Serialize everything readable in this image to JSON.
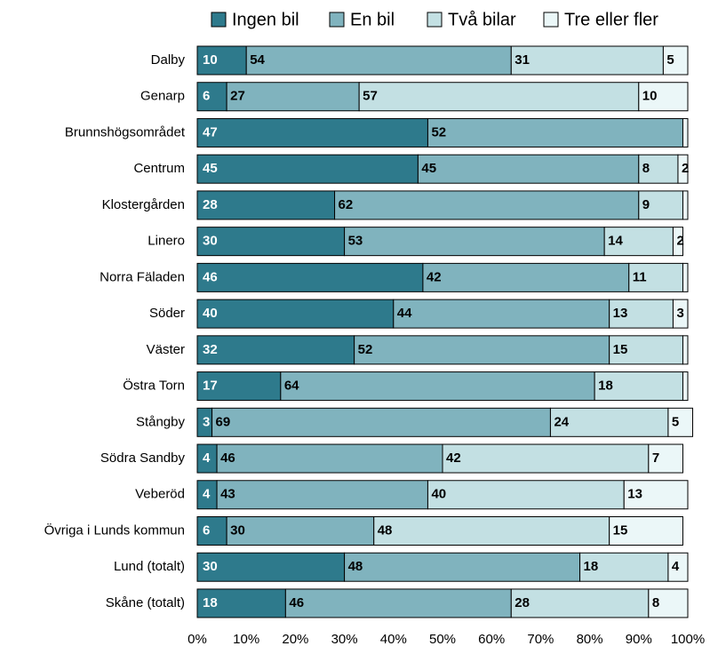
{
  "chart_data": {
    "type": "stacked-barh",
    "categories": [
      "Dalby",
      "Genarp",
      "Brunnshögsområdet",
      "Centrum",
      "Klostergården",
      "Linero",
      "Norra Fäladen",
      "Söder",
      "Väster",
      "Östra Torn",
      "Stångby",
      "Södra Sandby",
      "Veberöd",
      "Övriga i Lunds kommun",
      "Lund (totalt)",
      "Skåne (totalt)"
    ],
    "series": [
      {
        "name": "Ingen bil",
        "color": "#2e7a8c",
        "values": [
          10,
          6,
          47,
          45,
          28,
          30,
          46,
          40,
          32,
          17,
          3,
          4,
          4,
          6,
          30,
          18
        ]
      },
      {
        "name": "En bil",
        "color": "#80b3be",
        "values": [
          54,
          27,
          52,
          45,
          62,
          53,
          42,
          44,
          52,
          64,
          69,
          46,
          43,
          30,
          48,
          46
        ]
      },
      {
        "name": "Två bilar",
        "color": "#c3e0e3",
        "values": [
          31,
          57,
          0,
          8,
          9,
          14,
          11,
          13,
          15,
          18,
          24,
          42,
          40,
          48,
          18,
          28
        ],
        "value_labels": [
          "31",
          "57",
          null,
          "8",
          "9",
          "14",
          "11",
          "13",
          "15",
          "18",
          "24",
          "42",
          "40",
          "48",
          "18",
          "28"
        ]
      },
      {
        "name": "Tre eller fler",
        "color": "#ebf7f8",
        "values": [
          5,
          10,
          1,
          2,
          1,
          2,
          1,
          3,
          1,
          1,
          5,
          7,
          13,
          15,
          4,
          8
        ],
        "value_labels": [
          "5",
          "10",
          null,
          "2",
          null,
          "2",
          null,
          "3",
          null,
          null,
          "5",
          "7",
          "13",
          "15",
          "4",
          "8"
        ]
      }
    ],
    "xlim": [
      0,
      100
    ],
    "xticks": [
      {
        "value": 0,
        "label": "0%"
      },
      {
        "value": 10,
        "label": "10%"
      },
      {
        "value": 20,
        "label": "20%"
      },
      {
        "value": 30,
        "label": "30%"
      },
      {
        "value": 40,
        "label": "40%"
      },
      {
        "value": 50,
        "label": "50%"
      },
      {
        "value": 60,
        "label": "60%"
      },
      {
        "value": 70,
        "label": "70%"
      },
      {
        "value": 80,
        "label": "80%"
      },
      {
        "value": 90,
        "label": "90%"
      },
      {
        "value": 100,
        "label": "100%"
      }
    ],
    "legend": "top"
  }
}
